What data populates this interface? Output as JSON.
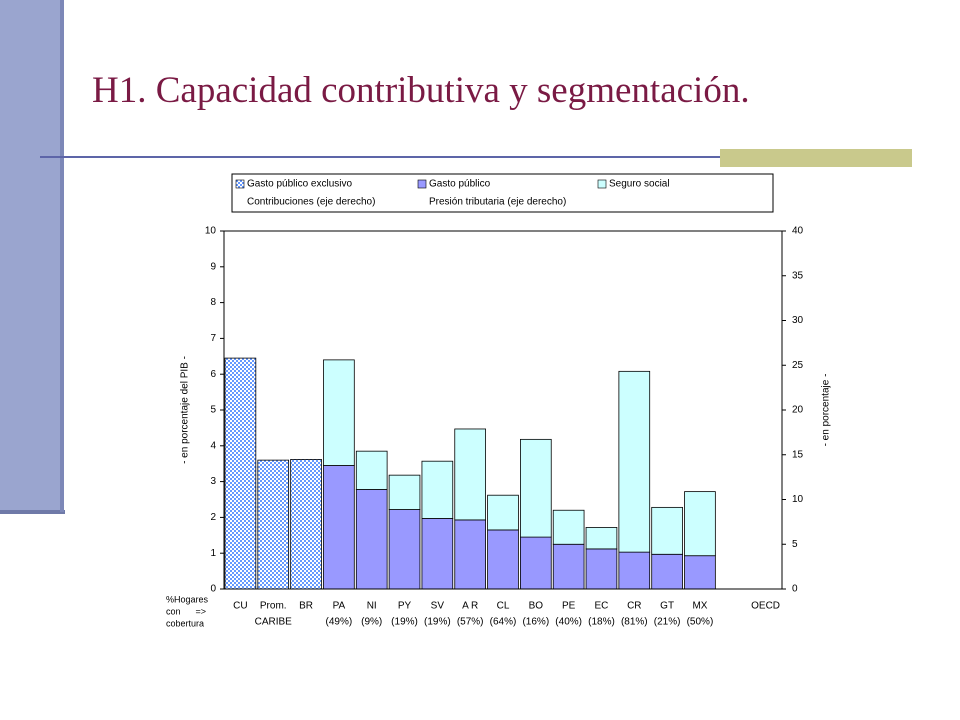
{
  "title": "H1. Capacidad contributiva y segmentación.",
  "chart_data": {
    "type": "stacked-bar",
    "categories": [
      "CU",
      "Prom.",
      "BR",
      "PA",
      "NI",
      "PY",
      "SV",
      "A R",
      "CL",
      "BO",
      "PE",
      "EC",
      "CR",
      "GT",
      "MX",
      null,
      "OECD"
    ],
    "subcategories": [
      null,
      "CARIBE",
      null,
      "(49%)",
      "(9%)",
      "(19%)",
      "(19%)",
      "(57%)",
      "(64%)",
      "(16%)",
      "(40%)",
      "(18%)",
      "(81%)",
      "(21%)",
      "(50%)",
      null,
      null
    ],
    "row_label": [
      "%Hogares",
      "con      =>",
      "cobertura"
    ],
    "series": [
      {
        "name": "Gasto público exclusivo",
        "color": "#6699ff",
        "pattern": "checkered",
        "values": [
          6.45,
          3.6,
          3.62,
          null,
          null,
          null,
          null,
          null,
          null,
          null,
          null,
          null,
          null,
          null,
          null,
          null,
          null
        ]
      },
      {
        "name": "Gasto público",
        "color": "#9999ff",
        "values": [
          null,
          null,
          null,
          3.45,
          2.78,
          2.22,
          1.97,
          1.93,
          1.65,
          1.45,
          1.25,
          1.12,
          1.03,
          0.97,
          0.93,
          null,
          null
        ]
      },
      {
        "name": "Seguro social",
        "color": "#ccffff",
        "values": [
          null,
          null,
          null,
          2.95,
          1.07,
          0.96,
          1.6,
          2.54,
          0.97,
          2.73,
          0.95,
          0.6,
          5.05,
          1.31,
          1.79,
          null,
          null
        ]
      },
      {
        "name": "Contribuciones (eje derecho)",
        "axis": "y2",
        "values": [
          null,
          null,
          null,
          null,
          null,
          null,
          null,
          null,
          null,
          null,
          null,
          null,
          null,
          null,
          null,
          null,
          null
        ]
      },
      {
        "name": "Presión tributaria (eje derecho)",
        "axis": "y2",
        "values": [
          null,
          null,
          null,
          null,
          null,
          null,
          null,
          null,
          null,
          null,
          null,
          null,
          null,
          null,
          null,
          null,
          null
        ]
      }
    ],
    "ylabel": "- en porcentaje del PIB -",
    "y2label": "- en porcentaje -",
    "ylim": [
      0,
      10
    ],
    "yticks": [
      0,
      1,
      2,
      3,
      4,
      5,
      6,
      7,
      8,
      9,
      10
    ],
    "y2lim": [
      0,
      40
    ],
    "y2ticks": [
      0,
      5,
      10,
      15,
      20,
      25,
      30,
      35,
      40
    ]
  }
}
